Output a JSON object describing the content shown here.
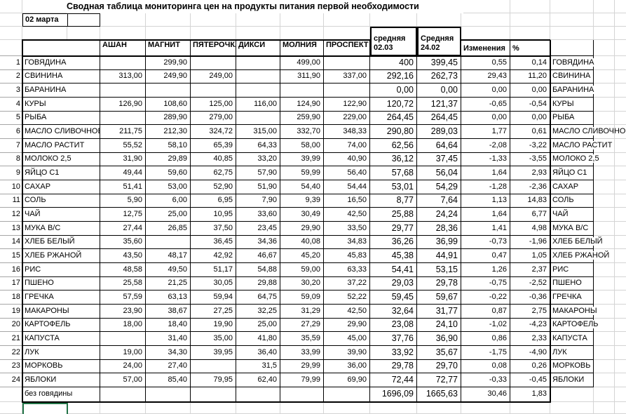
{
  "title": "Сводная таблица мониторинга цен на продукты питания первой необходимости",
  "date_label": "02 марта",
  "store_columns": [
    "АШАН",
    "МАГНИТ",
    "ПЯТЕРОЧКА",
    "ДИКСИ",
    "МОЛНИЯ",
    "ПРОСПЕКТ"
  ],
  "avg_current_header": {
    "line1": "средняя",
    "line2": "02.03"
  },
  "avg_previous_header": {
    "line1": "Средняя",
    "line2": "24.02"
  },
  "labels": {
    "changes": "Изменения",
    "percent": "%"
  },
  "rows": [
    {
      "num": "1",
      "name": "ГОВЯДИНА",
      "prices": [
        "",
        "299,90",
        "",
        "",
        "499,00",
        ""
      ],
      "avg_current": "400",
      "avg_previous": "399,45",
      "change": "0,55",
      "percent": "0,14"
    },
    {
      "num": "2",
      "name": "СВИНИНА",
      "prices": [
        "313,00",
        "249,90",
        "249,00",
        "",
        "311,90",
        "337,00"
      ],
      "avg_current": "292,16",
      "avg_previous": "262,73",
      "change": "29,43",
      "percent": "11,20"
    },
    {
      "num": "3",
      "name": "БАРАНИНА",
      "prices": [
        "",
        "",
        "",
        "",
        "",
        ""
      ],
      "avg_current": "0,00",
      "avg_previous": "0,00",
      "change": "0,00",
      "percent": "0,00"
    },
    {
      "num": "4",
      "name": "КУРЫ",
      "prices": [
        "126,90",
        "108,60",
        "125,00",
        "116,00",
        "124,90",
        "122,90"
      ],
      "avg_current": "120,72",
      "avg_previous": "121,37",
      "change": "-0,65",
      "percent": "-0,54"
    },
    {
      "num": "5",
      "name": "РЫБА",
      "prices": [
        "",
        "289,90",
        "279,00",
        "",
        "259,90",
        "229,00"
      ],
      "avg_current": "264,45",
      "avg_previous": "264,45",
      "change": "0,00",
      "percent": "0,00"
    },
    {
      "num": "6",
      "name": "МАСЛО СЛИВОЧНОЕ",
      "prices": [
        "211,75",
        "212,30",
        "324,72",
        "315,00",
        "332,70",
        "348,33"
      ],
      "avg_current": "290,80",
      "avg_previous": "289,03",
      "change": "1,77",
      "percent": "0,61"
    },
    {
      "num": "7",
      "name": "МАСЛО РАСТИТ",
      "prices": [
        "55,52",
        "58,10",
        "65,39",
        "64,33",
        "58,00",
        "74,00"
      ],
      "avg_current": "62,56",
      "avg_previous": "64,64",
      "change": "-2,08",
      "percent": "-3,22"
    },
    {
      "num": "8",
      "name": "МОЛОКО 2,5",
      "prices": [
        "31,90",
        "29,89",
        "40,85",
        "33,20",
        "39,99",
        "40,90"
      ],
      "avg_current": "36,12",
      "avg_previous": "37,45",
      "change": "-1,33",
      "percent": "-3,55"
    },
    {
      "num": "9",
      "name": "ЯЙЦО С1",
      "prices": [
        "49,44",
        "59,60",
        "62,75",
        "57,90",
        "59,99",
        "56,40"
      ],
      "avg_current": "57,68",
      "avg_previous": "56,04",
      "change": "1,64",
      "percent": "2,93"
    },
    {
      "num": "10",
      "name": "САХАР",
      "prices": [
        "51,41",
        "53,00",
        "52,90",
        "51,90",
        "54,40",
        "54,44"
      ],
      "avg_current": "53,01",
      "avg_previous": "54,29",
      "change": "-1,28",
      "percent": "-2,36"
    },
    {
      "num": "11",
      "name": "СОЛЬ",
      "prices": [
        "5,90",
        "6,00",
        "6,95",
        "7,90",
        "9,39",
        "16,50"
      ],
      "avg_current": "8,77",
      "avg_previous": "7,64",
      "change": "1,13",
      "percent": "14,83"
    },
    {
      "num": "12",
      "name": "ЧАЙ",
      "prices": [
        "12,75",
        "25,00",
        "10,95",
        "33,60",
        "30,49",
        "42,50"
      ],
      "avg_current": "25,88",
      "avg_previous": "24,24",
      "change": "1,64",
      "percent": "6,77"
    },
    {
      "num": "13",
      "name": "МУКА В/С",
      "prices": [
        "27,44",
        "26,85",
        "37,50",
        "23,45",
        "29,90",
        "33,50"
      ],
      "avg_current": "29,77",
      "avg_previous": "28,36",
      "change": "1,41",
      "percent": "4,98"
    },
    {
      "num": "14",
      "name": "ХЛЕБ БЕЛЫЙ",
      "prices": [
        "35,60",
        "",
        "36,45",
        "34,36",
        "40,08",
        "34,83"
      ],
      "avg_current": "36,26",
      "avg_previous": "36,99",
      "change": "-0,73",
      "percent": "-1,96"
    },
    {
      "num": "15",
      "name": "ХЛЕБ РЖАНОЙ",
      "prices": [
        "43,50",
        "48,17",
        "42,92",
        "46,67",
        "45,20",
        "45,83"
      ],
      "avg_current": "45,38",
      "avg_previous": "44,91",
      "change": "0,47",
      "percent": "1,05"
    },
    {
      "num": "16",
      "name": "РИС",
      "prices": [
        "48,58",
        "49,50",
        "51,17",
        "54,88",
        "59,00",
        "63,33"
      ],
      "avg_current": "54,41",
      "avg_previous": "53,15",
      "change": "1,26",
      "percent": "2,37"
    },
    {
      "num": "17",
      "name": "ПШЕНО",
      "prices": [
        "25,58",
        "21,25",
        "30,05",
        "29,88",
        "30,20",
        "37,22"
      ],
      "avg_current": "29,03",
      "avg_previous": "29,78",
      "change": "-0,75",
      "percent": "-2,52"
    },
    {
      "num": "18",
      "name": "ГРЕЧКА",
      "prices": [
        "57,59",
        "63,13",
        "59,94",
        "64,75",
        "59,09",
        "52,22"
      ],
      "avg_current": "59,45",
      "avg_previous": "59,67",
      "change": "-0,22",
      "percent": "-0,36"
    },
    {
      "num": "19",
      "name": "МАКАРОНЫ",
      "prices": [
        "23,90",
        "38,67",
        "27,25",
        "32,25",
        "31,29",
        "42,50"
      ],
      "avg_current": "32,64",
      "avg_previous": "31,77",
      "change": "0,87",
      "percent": "2,75"
    },
    {
      "num": "20",
      "name": "КАРТОФЕЛЬ",
      "prices": [
        "18,00",
        "18,40",
        "19,90",
        "25,00",
        "27,29",
        "29,90"
      ],
      "avg_current": "23,08",
      "avg_previous": "24,10",
      "change": "-1,02",
      "percent": "-4,23"
    },
    {
      "num": "21",
      "name": "КАПУСТА",
      "prices": [
        "",
        "31,40",
        "35,00",
        "41,80",
        "35,59",
        "45,00"
      ],
      "avg_current": "37,76",
      "avg_previous": "36,90",
      "change": "0,86",
      "percent": "2,33"
    },
    {
      "num": "22",
      "name": "ЛУК",
      "prices": [
        "19,00",
        "34,30",
        "39,95",
        "36,40",
        "33,99",
        "39,90"
      ],
      "avg_current": "33,92",
      "avg_previous": "35,67",
      "change": "-1,75",
      "percent": "-4,90"
    },
    {
      "num": "23",
      "name": "МОРКОВЬ",
      "prices": [
        "24,00",
        "27,40",
        "",
        "31,5",
        "29,99",
        "36,00"
      ],
      "avg_current": "29,78",
      "avg_previous": "29,70",
      "change": "0,08",
      "percent": "0,26"
    },
    {
      "num": "24",
      "name": "ЯБЛОКИ",
      "prices": [
        "57,00",
        "85,40",
        "79,95",
        "62,40",
        "79,99",
        "69,90"
      ],
      "avg_current": "72,44",
      "avg_previous": "72,77",
      "change": "-0,33",
      "percent": "-0,45"
    }
  ],
  "totals": {
    "label": "без говядины",
    "avg_current": "1696,09",
    "avg_previous": "1665,63",
    "change": "30,46",
    "percent": "1,83"
  },
  "colors": {
    "selection": "#217346",
    "gridline": "#d4d4d4"
  }
}
